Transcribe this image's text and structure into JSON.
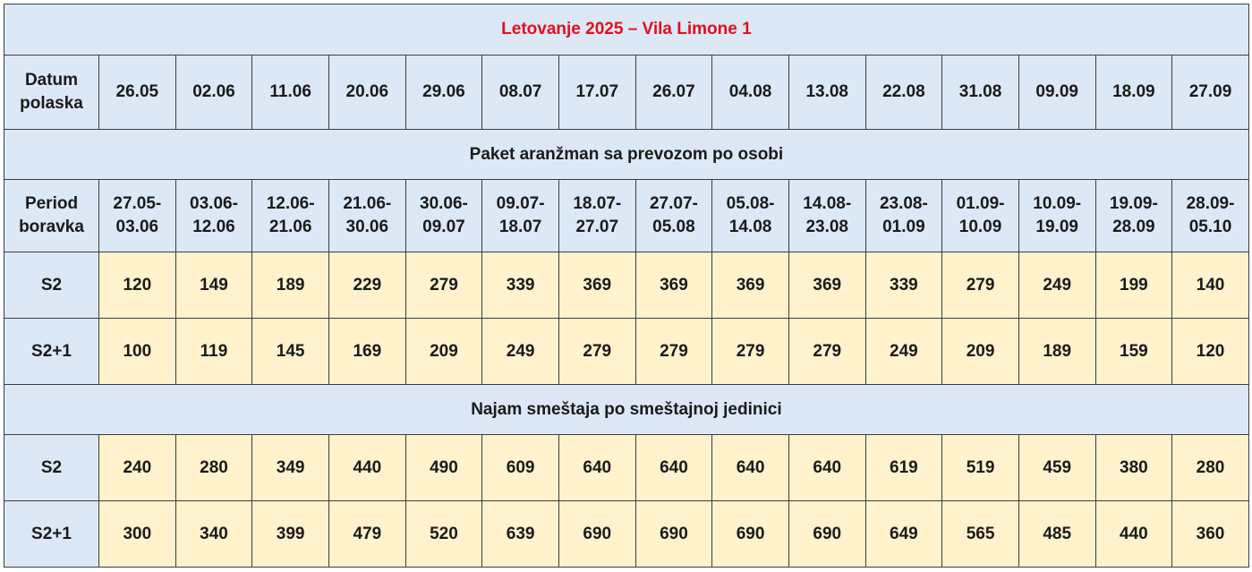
{
  "title": "Letovanje 2025 – Vila Limone 1",
  "departure": {
    "label_line1": "Datum",
    "label_line2": "polaska",
    "dates": [
      "26.05",
      "02.06",
      "11.06",
      "20.06",
      "29.06",
      "08.07",
      "17.07",
      "26.07",
      "04.08",
      "13.08",
      "22.08",
      "31.08",
      "09.09",
      "18.09",
      "27.09"
    ]
  },
  "package_section": {
    "heading": "Paket aranžman sa prevozom po osobi",
    "period_label_line1": "Period",
    "period_label_line2": "boravka",
    "periods": [
      [
        "27.05-",
        "03.06"
      ],
      [
        "03.06-",
        "12.06"
      ],
      [
        "12.06-",
        "21.06"
      ],
      [
        "21.06-",
        "30.06"
      ],
      [
        "30.06-",
        "09.07"
      ],
      [
        "09.07-",
        "18.07"
      ],
      [
        "18.07-",
        "27.07"
      ],
      [
        "27.07-",
        "05.08"
      ],
      [
        "05.08-",
        "14.08"
      ],
      [
        "14.08-",
        "23.08"
      ],
      [
        "23.08-",
        "01.09"
      ],
      [
        "01.09-",
        "10.09"
      ],
      [
        "10.09-",
        "19.09"
      ],
      [
        "19.09-",
        "28.09"
      ],
      [
        "28.09-",
        "05.10"
      ]
    ],
    "rows": [
      {
        "label": "S2",
        "values": [
          "120",
          "149",
          "189",
          "229",
          "279",
          "339",
          "369",
          "369",
          "369",
          "369",
          "339",
          "279",
          "249",
          "199",
          "140"
        ]
      },
      {
        "label": "S2+1",
        "values": [
          "100",
          "119",
          "145",
          "169",
          "209",
          "249",
          "279",
          "279",
          "279",
          "279",
          "249",
          "209",
          "189",
          "159",
          "120"
        ]
      }
    ]
  },
  "rental_section": {
    "heading": "Najam smeštaja po smeštajnoj jedinici",
    "rows": [
      {
        "label": "S2",
        "values": [
          "240",
          "280",
          "349",
          "440",
          "490",
          "609",
          "640",
          "640",
          "640",
          "640",
          "619",
          "519",
          "459",
          "380",
          "280"
        ]
      },
      {
        "label": "S2+1",
        "values": [
          "300",
          "340",
          "399",
          "479",
          "520",
          "639",
          "690",
          "690",
          "690",
          "690",
          "649",
          "565",
          "485",
          "440",
          "360"
        ]
      }
    ]
  },
  "colors": {
    "header_bg": "#dce8f5",
    "value_bg": "#fff2cc",
    "title_text": "#e0101c",
    "border": "#3c3c3c"
  }
}
